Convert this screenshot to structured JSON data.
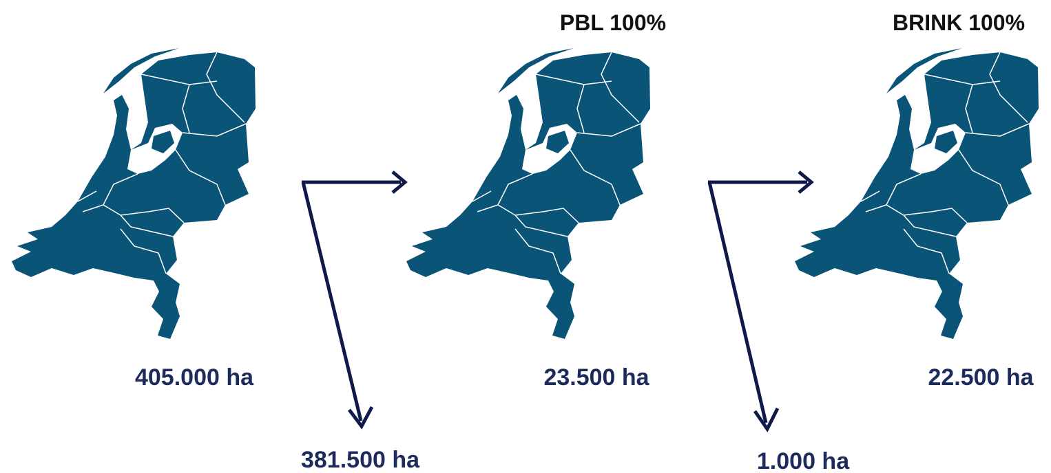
{
  "maps": [
    {
      "label": "405.000 ha"
    },
    {
      "title": "PBL 100%",
      "label": "23.500 ha"
    },
    {
      "title": "BRINK 100%",
      "label": "22.500 ha"
    }
  ],
  "flows": [
    {
      "label": "381.500 ha"
    },
    {
      "label": "1.000 ha"
    }
  ]
}
